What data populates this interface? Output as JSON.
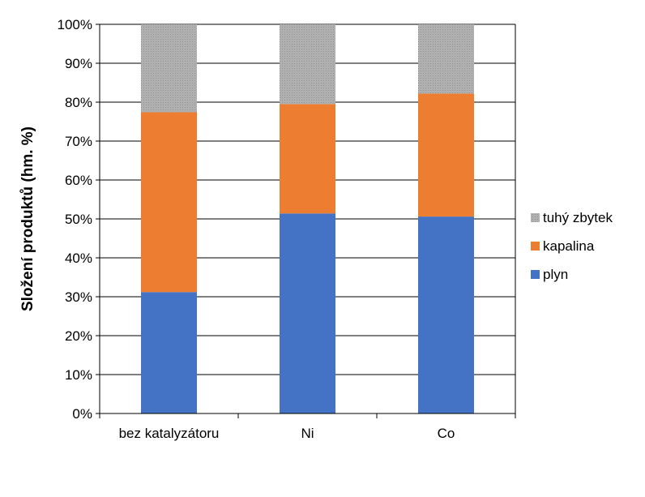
{
  "chart_data": {
    "type": "bar",
    "stacked": true,
    "percent": true,
    "title": "",
    "xlabel": "",
    "ylabel": "Složení produktů (hm. %)",
    "categories": [
      "bez katalyzátoru",
      "Ni",
      "Co"
    ],
    "series": [
      {
        "name": "plyn",
        "color": "#4472C4",
        "values": [
          31.2,
          51.4,
          50.6
        ]
      },
      {
        "name": "kapalina",
        "color": "#ED7D31",
        "values": [
          46.2,
          28.1,
          31.6
        ]
      },
      {
        "name": "tuhý zbytek",
        "color": "#A5A5A5",
        "pattern": "dotted",
        "values": [
          22.6,
          20.5,
          17.8
        ]
      }
    ],
    "ylim": [
      0,
      100
    ],
    "yticks": [
      0,
      10,
      20,
      30,
      40,
      50,
      60,
      70,
      80,
      90,
      100
    ],
    "ytick_labels": [
      "0%",
      "10%",
      "20%",
      "30%",
      "40%",
      "50%",
      "60%",
      "70%",
      "80%",
      "90%",
      "100%"
    ],
    "grid": true,
    "legend_position": "right",
    "legend_order": [
      "tuhý zbytek",
      "kapalina",
      "plyn"
    ]
  }
}
